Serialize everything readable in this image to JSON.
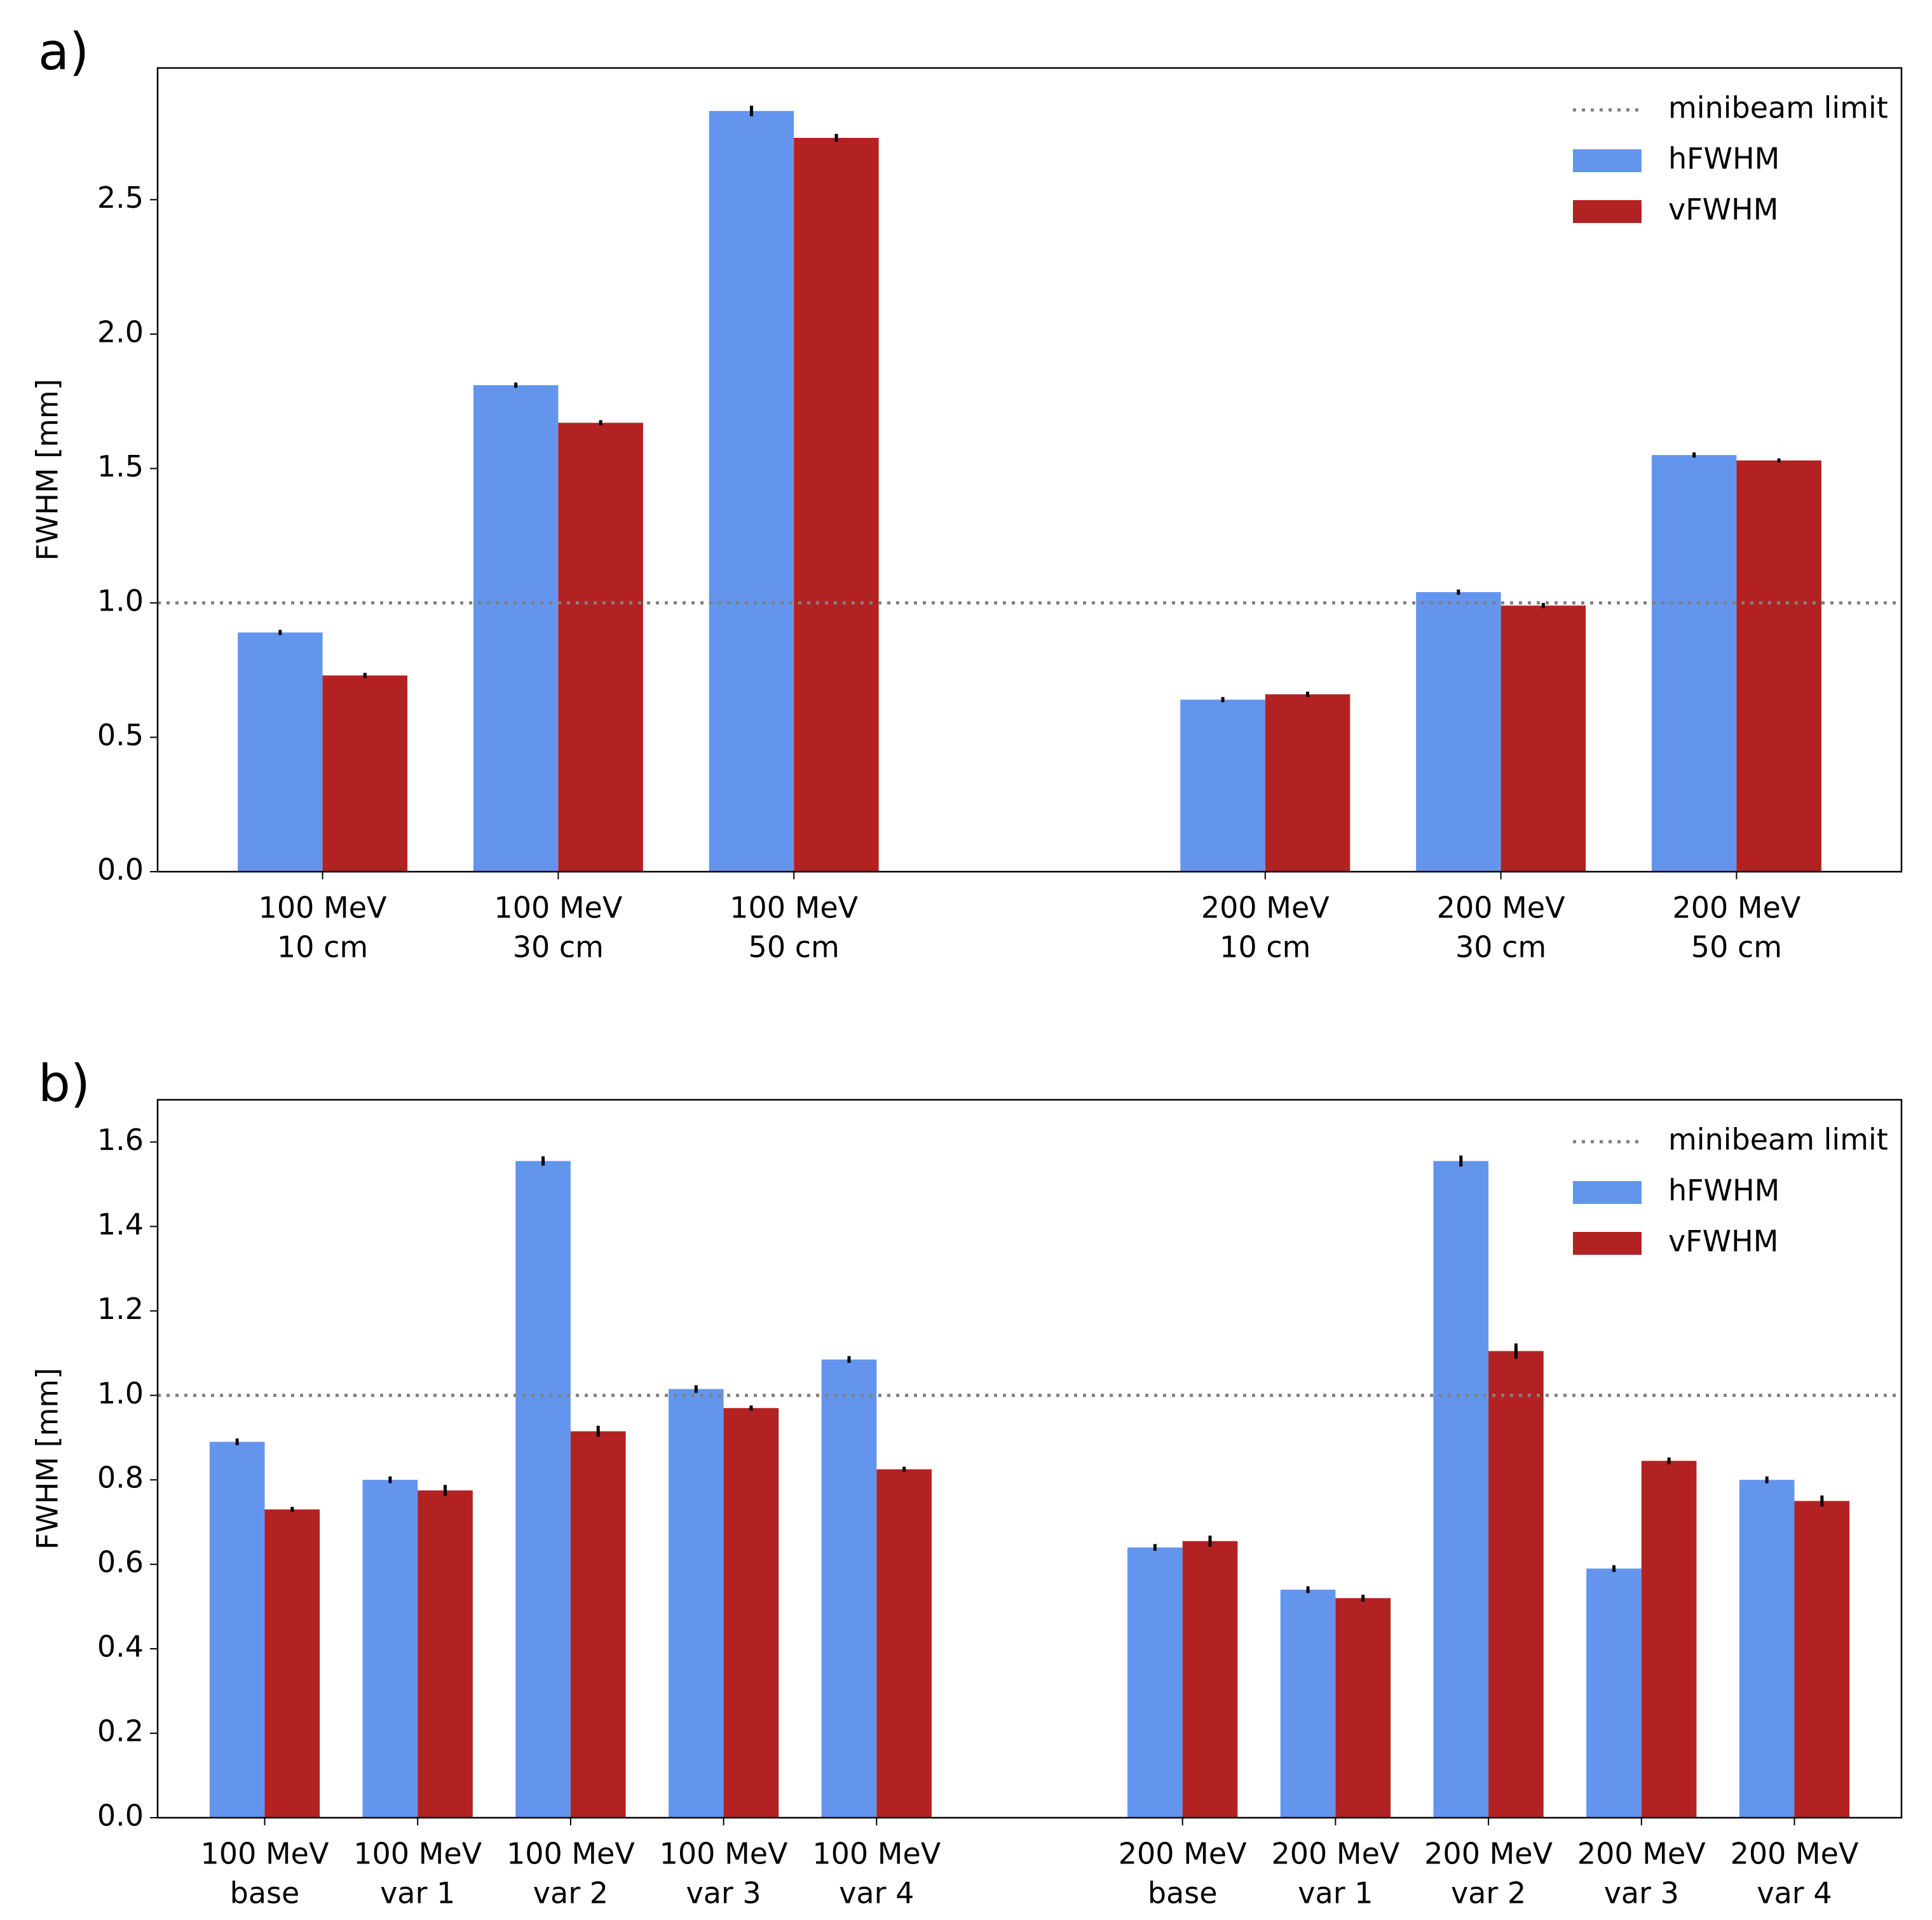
{
  "chart_data": [
    {
      "type": "bar",
      "label": "a)",
      "ylabel": "FWHM [mm]",
      "categories": [
        [
          "100 MeV",
          "10 cm"
        ],
        [
          "100 MeV",
          "30 cm"
        ],
        [
          "100 MeV",
          "50 cm"
        ],
        null,
        [
          "200 MeV",
          "10 cm"
        ],
        [
          "200 MeV",
          "30 cm"
        ],
        [
          "200 MeV",
          "50 cm"
        ]
      ],
      "series": [
        {
          "name": "hFWHM",
          "color": "#6495ed",
          "values": [
            0.89,
            1.81,
            2.83,
            null,
            0.64,
            1.04,
            1.55
          ],
          "errors": [
            0.005,
            0.005,
            0.015,
            null,
            0.005,
            0.005,
            0.005
          ]
        },
        {
          "name": "vFWHM",
          "color": "#b22222",
          "values": [
            0.73,
            1.67,
            2.73,
            null,
            0.66,
            0.99,
            1.53
          ],
          "errors": [
            0.005,
            0.005,
            0.01,
            null,
            0.005,
            0.005,
            0.003
          ]
        }
      ],
      "reference_line": {
        "name": "minibeam limit",
        "value": 1.0,
        "color": "#808080"
      },
      "ylim": [
        0,
        2.99
      ],
      "yticks": [
        {
          "value": 0,
          "label": "0.0"
        },
        0.5,
        {
          "value": 1,
          "label": "1.0"
        },
        1.5,
        {
          "value": 2,
          "label": "2.0"
        },
        2.5
      ],
      "legend": "upper right"
    },
    {
      "type": "bar",
      "label": "b)",
      "ylabel": "FWHM [mm]",
      "categories": [
        [
          "100 MeV",
          "base"
        ],
        [
          "100 MeV",
          "var 1"
        ],
        [
          "100 MeV",
          "var 2"
        ],
        [
          "100 MeV",
          "var 3"
        ],
        [
          "100 MeV",
          "var 4"
        ],
        null,
        [
          "200 MeV",
          "base"
        ],
        [
          "200 MeV",
          "var 1"
        ],
        [
          "200 MeV",
          "var 2"
        ],
        [
          "200 MeV",
          "var 3"
        ],
        [
          "200 MeV",
          "var 4"
        ]
      ],
      "series": [
        {
          "name": "hFWHM",
          "color": "#6495ed",
          "values": [
            0.89,
            0.8,
            1.555,
            1.015,
            1.085,
            null,
            0.64,
            0.54,
            1.555,
            0.59,
            0.8
          ],
          "errors": [
            0.005,
            0.005,
            0.008,
            0.006,
            0.005,
            null,
            0.005,
            0.005,
            0.01,
            0.005,
            0.005
          ]
        },
        {
          "name": "vFWHM",
          "color": "#b22222",
          "values": [
            0.73,
            0.775,
            0.915,
            0.97,
            0.825,
            null,
            0.655,
            0.52,
            1.105,
            0.845,
            0.75
          ],
          "errors": [
            0.003,
            0.01,
            0.01,
            0.003,
            0.003,
            null,
            0.01,
            0.005,
            0.015,
            0.005,
            0.01
          ]
        }
      ],
      "reference_line": {
        "name": "minibeam limit",
        "value": 1.0,
        "color": "#808080"
      },
      "ylim": [
        0,
        1.7
      ],
      "yticks": [
        {
          "value": 0,
          "label": "0.0"
        },
        0.2,
        0.4,
        0.6,
        0.8,
        {
          "value": 1,
          "label": "1.0"
        },
        1.2,
        1.4,
        1.6
      ],
      "legend": "upper right"
    }
  ]
}
